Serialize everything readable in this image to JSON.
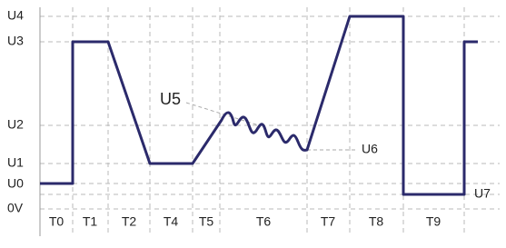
{
  "levels": [
    "U4",
    "U3",
    "U2",
    "U1",
    "U0",
    "0V"
  ],
  "right_label": "U7",
  "phases": [
    "T0",
    "T1",
    "T2",
    "T4",
    "T5",
    "T6",
    "T7",
    "T8",
    "T9"
  ],
  "callouts": [
    "U5",
    "U6"
  ]
}
